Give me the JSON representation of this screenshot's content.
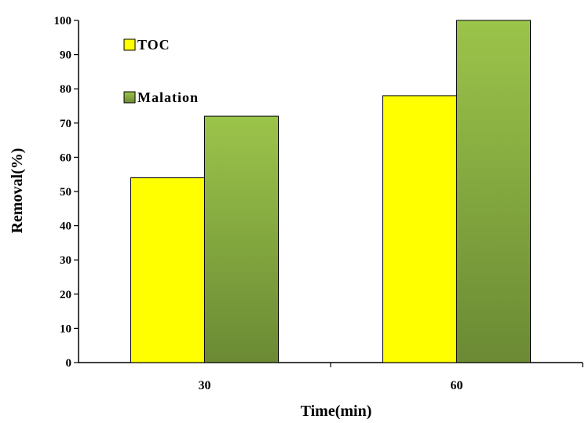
{
  "chart_data": {
    "type": "bar",
    "categories": [
      "30",
      "60"
    ],
    "series": [
      {
        "name": "TOC",
        "values": [
          54,
          78
        ],
        "color": "#ffff00"
      },
      {
        "name": "Malation",
        "values": [
          72,
          100
        ],
        "color": "#8aad42",
        "gradient": [
          "#9bc44a",
          "#6b8a34"
        ]
      }
    ],
    "title": "",
    "xlabel": "Time(min)",
    "ylabel": "Removal(%)",
    "ylim": [
      0,
      100
    ],
    "yticks": [
      0,
      10,
      20,
      30,
      40,
      50,
      60,
      70,
      80,
      90,
      100
    ],
    "grid": false,
    "legend_position": "top-left"
  }
}
